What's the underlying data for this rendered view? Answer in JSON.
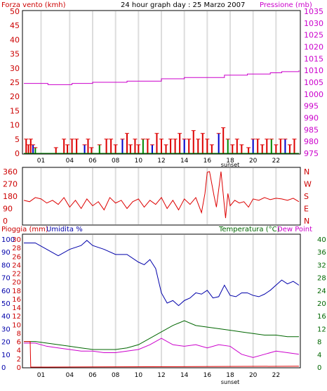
{
  "colors": {
    "wind": "#dd0000",
    "pressure": "#cc00cc",
    "direction": "#dd0000",
    "humidity": "#0000aa",
    "temperature": "#006600",
    "dewpoint": "#cc00cc",
    "rain": "#dd0000",
    "gust_blue": "#0000cc",
    "gust_green": "#008800",
    "grid_v": "#dddddd",
    "frame": "#000000"
  },
  "chart_data": [
    {
      "type": "bar",
      "title": "24 hour graph day : 25 Marzo 2007",
      "ylabel": "Forza vento (kmh)",
      "y2label": "Pressione (mb)",
      "x_ticks": [
        "01",
        "04",
        "06",
        "08",
        "10",
        "12",
        "14",
        "16",
        "18",
        "20",
        "22"
      ],
      "x_annotation": "sunset",
      "ylim": [
        0,
        50
      ],
      "y_ticks": [
        "0",
        "5",
        "10",
        "15",
        "20",
        "25",
        "30",
        "35",
        "40",
        "45",
        "50"
      ],
      "y2lim": [
        975,
        1035
      ],
      "y2_ticks": [
        "975",
        "980",
        "985",
        "990",
        "995",
        "1000",
        "1005",
        "1010",
        "1015",
        "1020",
        "1025",
        "1030",
        "1035"
      ],
      "series": [
        {
          "name": "Pressione",
          "x": [
            0,
            2,
            2.1,
            2.7,
            3.3,
            4.2,
            6,
            9,
            12,
            14,
            17.5,
            19.5,
            21.5,
            22.5,
            24
          ],
          "values": [
            1004.5,
            1004.5,
            1004,
            1004,
            1004,
            1004.5,
            1005,
            1005.5,
            1006.5,
            1007,
            1008,
            1008.5,
            1009,
            1009.5,
            1010
          ]
        },
        {
          "name": "Forza vento",
          "x": [
            0.2,
            0.4,
            0.6,
            0.8,
            1.0,
            2.8,
            3.5,
            3.8,
            4.2,
            4.6,
            5.3,
            5.6,
            5.9,
            6.6,
            7.2,
            7.6,
            8.0,
            8.6,
            9.0,
            9.3,
            9.7,
            10.0,
            10.4,
            10.8,
            11.2,
            11.6,
            12.0,
            12.4,
            12.8,
            13.2,
            13.6,
            14.0,
            14.4,
            14.8,
            15.2,
            15.6,
            16.0,
            16.4,
            17.0,
            17.4,
            17.8,
            18.2,
            18.6,
            19.0,
            19.6,
            20.0,
            20.4,
            20.8,
            21.2,
            21.6,
            22.0,
            22.4,
            22.8,
            23.2,
            23.6
          ],
          "values": [
            5,
            3,
            5,
            3,
            2,
            2,
            5,
            3,
            5,
            5,
            3,
            5,
            2,
            3,
            5,
            5,
            3,
            5,
            7,
            3,
            5,
            3,
            5,
            5,
            3,
            7,
            5,
            3,
            5,
            5,
            7,
            5,
            5,
            8,
            5,
            7,
            5,
            3,
            7,
            9,
            5,
            3,
            5,
            3,
            2,
            5,
            5,
            3,
            5,
            5,
            3,
            5,
            5,
            3,
            5
          ]
        }
      ]
    },
    {
      "type": "line",
      "y_ticks": [
        "0",
        "90",
        "180",
        "270",
        "360"
      ],
      "y2_ticks": [
        "N",
        "W",
        "S",
        "E",
        "N"
      ],
      "ylim": [
        0,
        360
      ],
      "series": [
        {
          "name": "Direzione",
          "x": [
            0,
            0.5,
            1,
            1.5,
            2,
            2.5,
            3,
            3.5,
            4,
            4.5,
            5,
            5.5,
            6,
            6.5,
            7,
            7.5,
            8,
            8.5,
            9,
            9.5,
            10,
            10.5,
            11,
            11.5,
            12,
            12.5,
            13,
            13.5,
            14,
            14.5,
            15,
            15.5,
            15.8,
            16,
            16.2,
            16.6,
            16.8,
            17.2,
            17.6,
            17.8,
            18,
            18.4,
            18.8,
            19.2,
            19.6,
            20,
            20.5,
            21,
            21.5,
            22,
            22.5,
            23,
            23.5,
            24
          ],
          "values": [
            150,
            140,
            170,
            160,
            130,
            150,
            120,
            170,
            100,
            150,
            90,
            160,
            110,
            140,
            80,
            170,
            130,
            150,
            90,
            140,
            160,
            100,
            150,
            120,
            170,
            90,
            150,
            80,
            160,
            120,
            170,
            60,
            200,
            355,
            360,
            180,
            100,
            360,
            20,
            200,
            110,
            150,
            130,
            140,
            100,
            160,
            150,
            170,
            155,
            165,
            160,
            150,
            165,
            140
          ]
        }
      ]
    },
    {
      "type": "line",
      "ylabel": "Pioggia (mm)  Umidita %",
      "y2label": "Temperatura (°C)",
      "y3label": "Dew Point",
      "x_ticks": [
        "01",
        "04",
        "06",
        "08",
        "10",
        "12",
        "14",
        "16",
        "18",
        "20",
        "22"
      ],
      "x_annotation": "sunset",
      "y_ticks_rain": [
        "0",
        "2",
        "4",
        "6",
        "8",
        "10",
        "12",
        "14",
        "16",
        "18",
        "20",
        "22",
        "24",
        "26",
        "28",
        "30"
      ],
      "y_ticks_hum": [
        "0",
        "10",
        "20",
        "30",
        "40",
        "50",
        "60",
        "70",
        "80",
        "90",
        "100"
      ],
      "y2_ticks": [
        "0",
        "4",
        "8",
        "12",
        "16",
        "20",
        "24",
        "28",
        "32",
        "36",
        "40"
      ],
      "hum_range": [
        0,
        100
      ],
      "temp_range": [
        0,
        40
      ],
      "series": [
        {
          "name": "Umidita %",
          "x": [
            0,
            1,
            2,
            3,
            4,
            5,
            5.5,
            6,
            7,
            8,
            9,
            10,
            10.5,
            11,
            11.5,
            12,
            12.5,
            13,
            13.5,
            14,
            14.5,
            15,
            15.5,
            16,
            16.5,
            17,
            17.5,
            18,
            18.5,
            19,
            19.5,
            20,
            20.5,
            21,
            21.5,
            22,
            22.5,
            23,
            23.5,
            24
          ],
          "values": [
            97,
            97,
            92,
            87,
            92,
            95,
            99,
            95,
            92,
            88,
            88,
            82,
            80,
            84,
            77,
            58,
            50,
            52,
            48,
            52,
            54,
            58,
            57,
            60,
            54,
            55,
            64,
            56,
            55,
            58,
            58,
            56,
            55,
            57,
            60,
            64,
            68,
            65,
            67,
            64
          ]
        },
        {
          "name": "Temperatura (°C)",
          "x": [
            0,
            1,
            2,
            3,
            4,
            5,
            6,
            7,
            8,
            9,
            10,
            11,
            12,
            13,
            14,
            15,
            16,
            17,
            18,
            19,
            20,
            21,
            22,
            23,
            24
          ],
          "values": [
            8,
            8,
            7.5,
            7,
            6.5,
            6,
            5.5,
            5.5,
            5.5,
            6,
            7,
            9,
            11,
            13,
            14.5,
            13,
            12.5,
            12,
            11.5,
            11,
            10.5,
            10,
            10,
            9.5,
            9.5
          ]
        },
        {
          "name": "Dew Point",
          "x": [
            0,
            1,
            2,
            3,
            4,
            5,
            6,
            7,
            8,
            9,
            10,
            11,
            12,
            13,
            14,
            15,
            16,
            17,
            18,
            19,
            20,
            21,
            22,
            23,
            24
          ],
          "values": [
            7.5,
            7.5,
            6.5,
            6,
            5.5,
            5,
            5,
            4.5,
            4.5,
            5,
            5.5,
            7,
            9,
            7,
            6.5,
            7,
            6,
            7,
            6.5,
            4,
            3,
            4,
            5,
            4.5,
            4
          ]
        },
        {
          "name": "Pioggia (mm)",
          "x": [
            0,
            0.55,
            0.6,
            2,
            24
          ],
          "values": [
            6,
            6,
            0,
            0,
            0.2
          ]
        }
      ]
    }
  ],
  "labels": {
    "top_left": "Forza vento (kmh)",
    "top_center": "24 hour graph day : 25 Marzo 2007",
    "top_right": "Pressione (mb)",
    "bottom_left_rain": "Pioggia (mm)",
    "bottom_left_hum": "Umidita %",
    "bottom_right_temp": "Temperatura (°C)",
    "bottom_right_dew": "Dew Point",
    "sunset": "sunset"
  }
}
